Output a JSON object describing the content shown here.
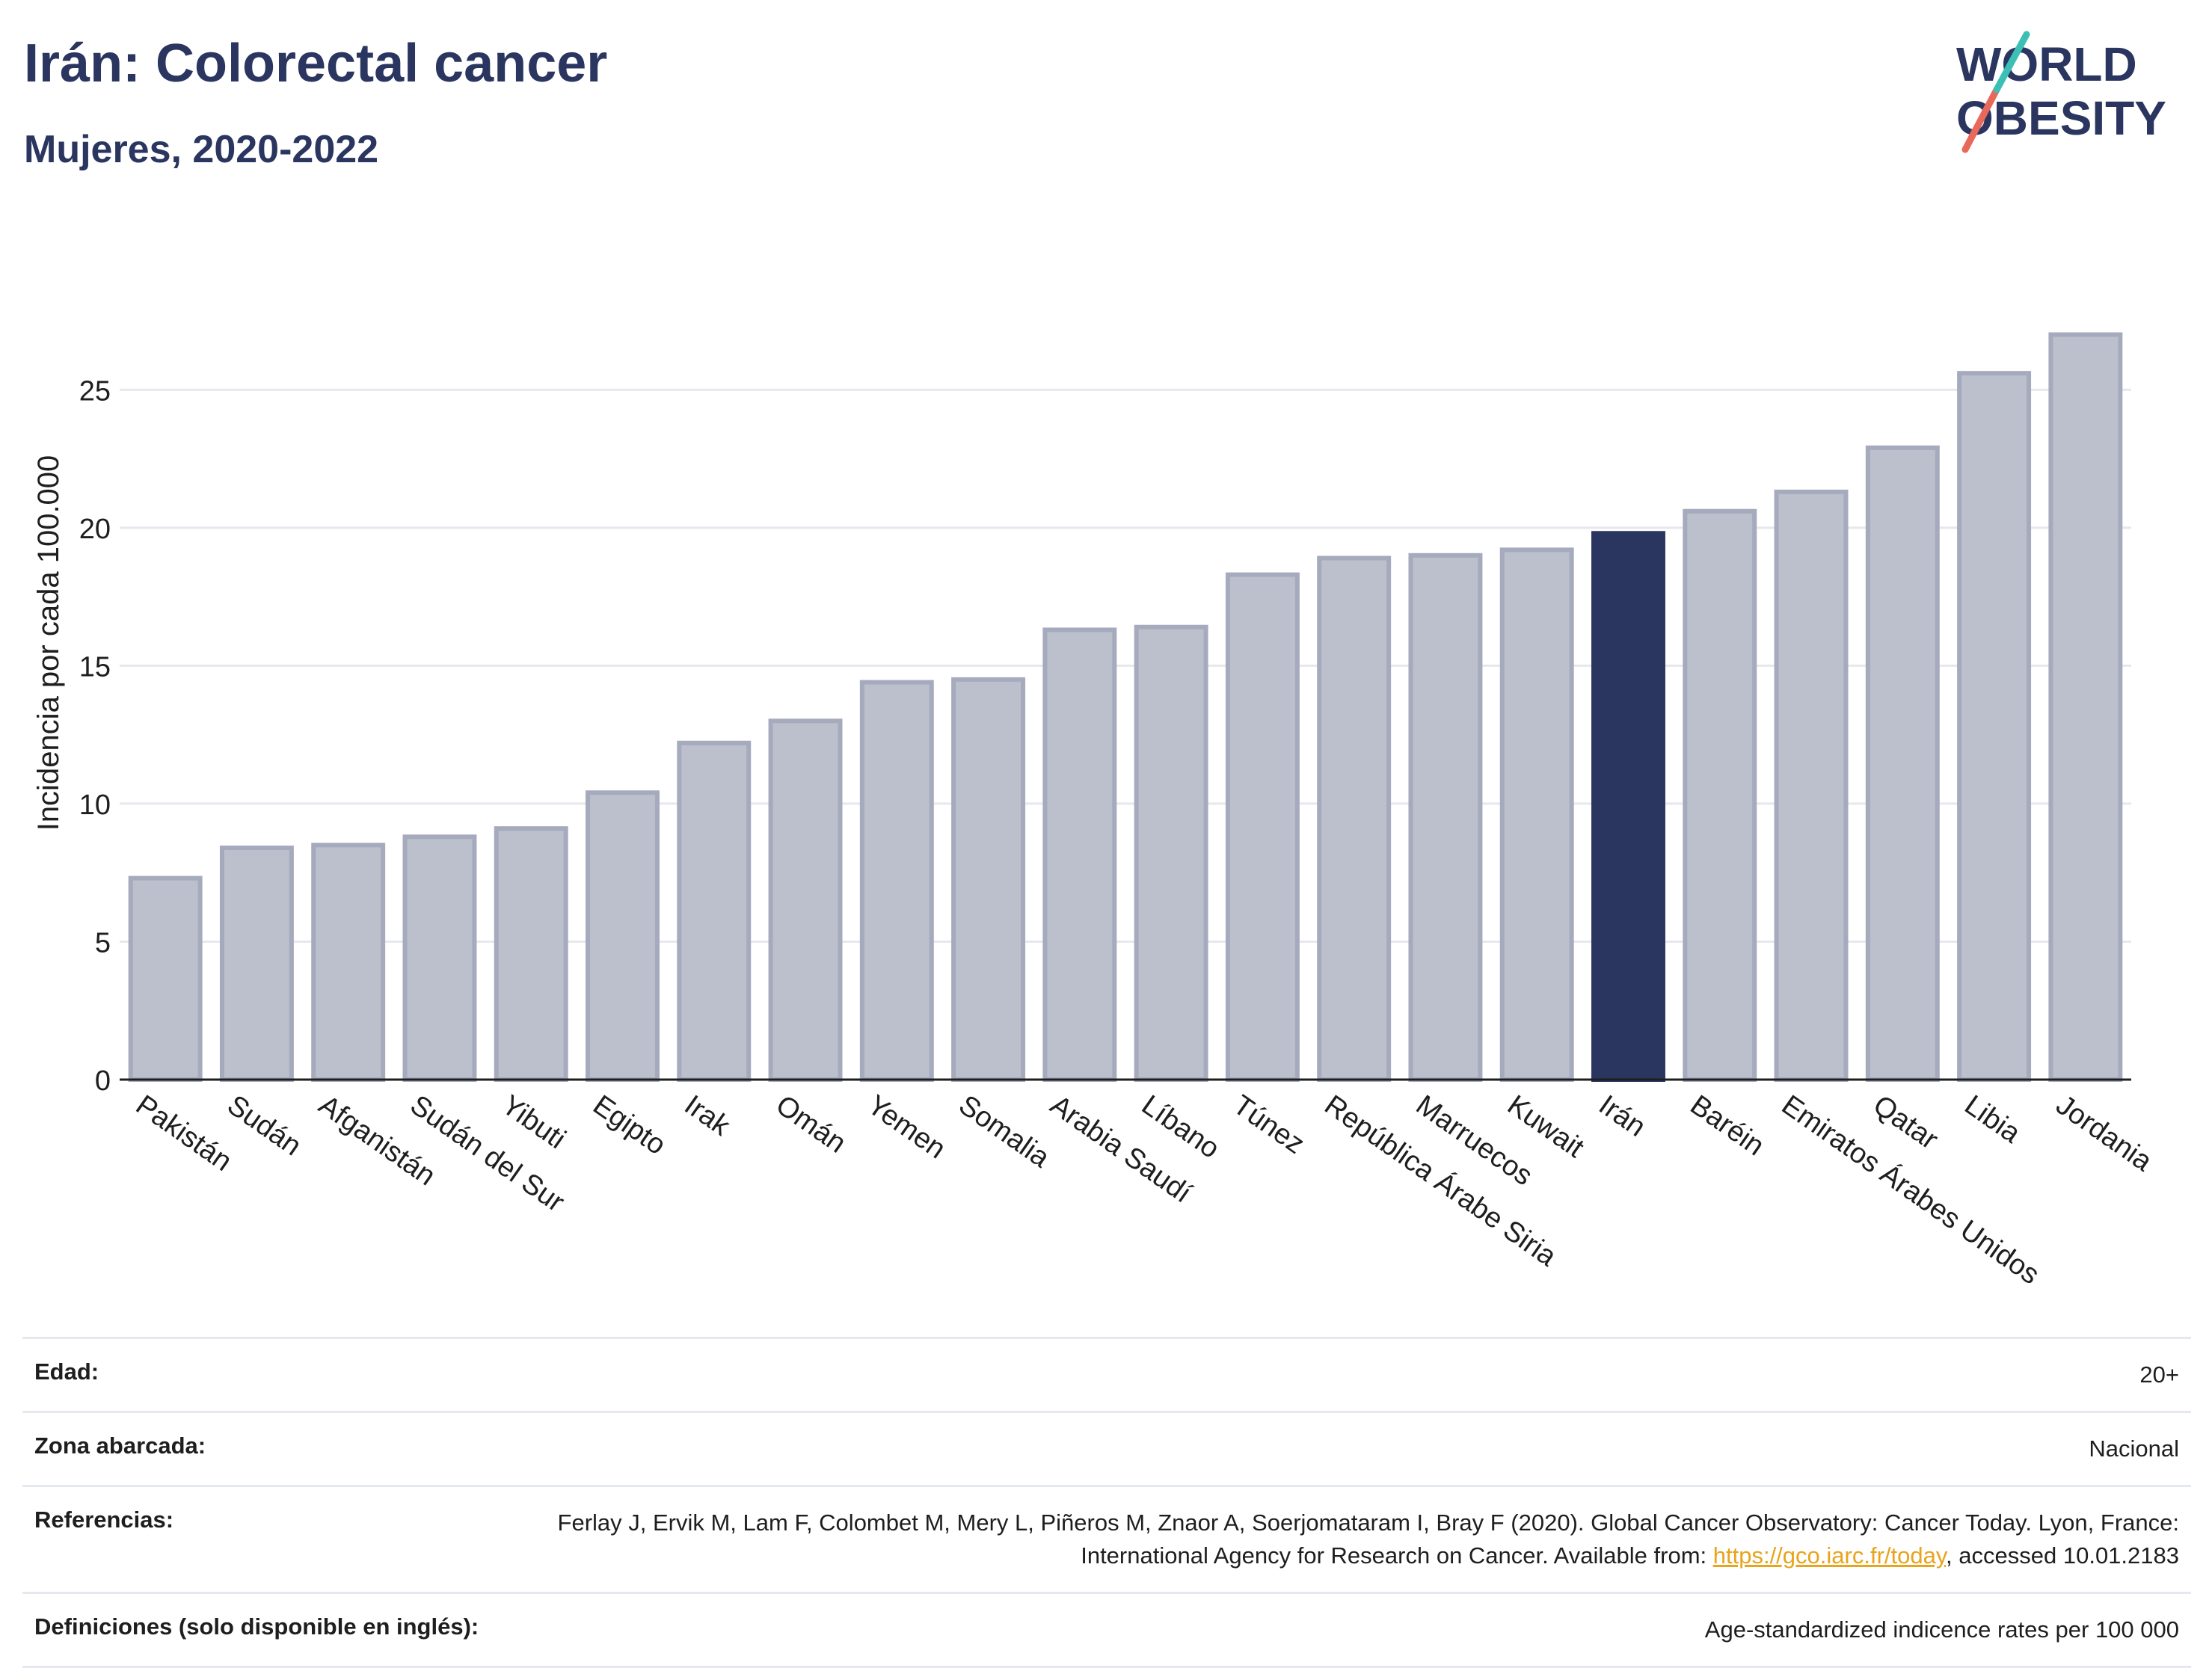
{
  "header": {
    "title": "Irán: Colorectal cancer",
    "subtitle": "Mujeres, 2020-2022"
  },
  "logo": {
    "line1": "WORLD",
    "line2": "OBESITY",
    "colors": [
      "#2a3560",
      "#3cbfb4",
      "#e8685a"
    ]
  },
  "colors": {
    "highlight": "#2a3560",
    "bar_fill": "#bcc0cd",
    "bar_stroke": "#a5aabd",
    "grid": "#e6e8ef"
  },
  "chart_data": {
    "type": "bar",
    "title": "Irán: Colorectal cancer",
    "subtitle": "Mujeres, 2020-2022",
    "xlabel": "",
    "ylabel": "Incidencia por cada 100.000",
    "ylim": [
      0,
      27.8
    ],
    "yticks": [
      0,
      5,
      10,
      15,
      20,
      25
    ],
    "grid": true,
    "highlight": "Irán",
    "categories": [
      "Pakistán",
      "Sudán",
      "Afganistán",
      "Sudán del Sur",
      "Yibuti",
      "Egipto",
      "Irak",
      "Omán",
      "Yemen",
      "Somalia",
      "Arabia Saudí",
      "Líbano",
      "Túnez",
      "República Árabe Siria",
      "Marruecos",
      "Kuwait",
      "Irán",
      "Baréin",
      "Emiratos Árabes Unidos",
      "Qatar",
      "Libia",
      "Jordania"
    ],
    "values": [
      7.3,
      8.4,
      8.5,
      8.8,
      9.1,
      10.4,
      12.2,
      13.0,
      14.4,
      14.5,
      16.3,
      16.4,
      18.3,
      18.9,
      19.0,
      19.2,
      19.8,
      20.6,
      21.3,
      22.9,
      25.6,
      27.0
    ]
  },
  "meta": [
    {
      "label": "Edad:",
      "value": "20+"
    },
    {
      "label": "Zona abarcada:",
      "value": "Nacional"
    },
    {
      "label": "Referencias:",
      "value_pre": "Ferlay J, Ervik M, Lam F, Colombet M, Mery L, Piñeros M, Znaor A, Soerjomataram I, Bray F (2020). Global Cancer Observatory: Cancer Today. Lyon, France: International Agency for Research on Cancer. Available from: ",
      "link": "https://gco.iarc.fr/today",
      "value_post": ", accessed 10.01.2183"
    },
    {
      "label": "Definiciones (solo disponible en inglés):",
      "value": "Age-standardized indicence rates per 100 000"
    }
  ]
}
